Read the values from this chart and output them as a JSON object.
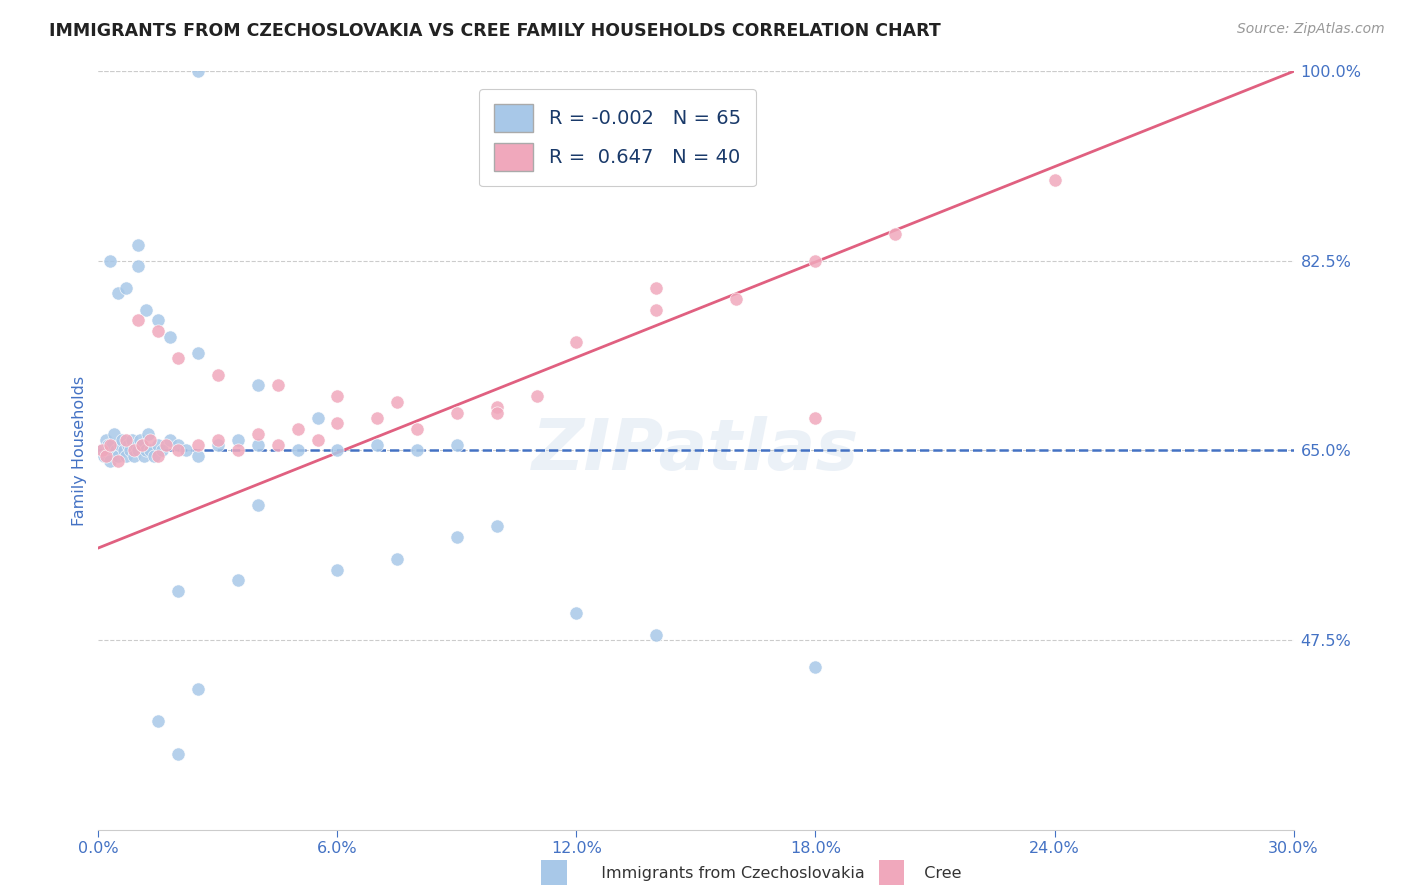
{
  "title": "IMMIGRANTS FROM CZECHOSLOVAKIA VS CREE FAMILY HOUSEHOLDS CORRELATION CHART",
  "source": "Source: ZipAtlas.com",
  "ylabel": "Family Households",
  "xlim": [
    0.0,
    30.0
  ],
  "ylim": [
    30.0,
    100.0
  ],
  "yticks": [
    47.5,
    65.0,
    82.5,
    100.0
  ],
  "xticks": [
    0.0,
    6.0,
    12.0,
    18.0,
    24.0,
    30.0
  ],
  "blue_R": -0.002,
  "blue_N": 65,
  "pink_R": 0.647,
  "pink_N": 40,
  "blue_color": "#a8c8e8",
  "pink_color": "#f0a8bc",
  "blue_line_color": "#4472c4",
  "pink_line_color": "#e06080",
  "title_color": "#222222",
  "axis_label_color": "#4472c4",
  "background_color": "#ffffff",
  "blue_line_y0": 65.0,
  "blue_line_y1": 65.0,
  "pink_line_y0": 56.0,
  "pink_line_y1": 100.0,
  "blue_scatter_x": [
    0.1,
    0.15,
    0.2,
    0.25,
    0.3,
    0.35,
    0.4,
    0.45,
    0.5,
    0.55,
    0.6,
    0.65,
    0.7,
    0.75,
    0.8,
    0.85,
    0.9,
    0.95,
    1.0,
    1.05,
    1.1,
    1.15,
    1.2,
    1.25,
    1.3,
    1.4,
    1.5,
    1.6,
    1.8,
    2.0,
    2.2,
    2.5,
    3.0,
    3.5,
    4.0,
    5.0,
    6.0,
    7.0,
    8.0,
    9.0,
    1.0,
    0.3,
    0.5,
    0.7,
    1.2,
    1.5,
    1.8,
    2.5,
    4.0,
    5.5,
    7.5,
    9.0,
    10.0,
    12.0,
    14.0,
    18.0,
    2.0,
    3.5,
    6.0,
    2.0,
    1.5,
    2.5,
    1.0,
    4.0,
    2.5
  ],
  "blue_scatter_y": [
    65.0,
    64.5,
    66.0,
    65.5,
    64.0,
    65.5,
    66.5,
    65.0,
    64.5,
    65.5,
    66.0,
    65.0,
    64.5,
    65.5,
    65.0,
    66.0,
    64.5,
    65.5,
    65.0,
    66.0,
    65.5,
    64.5,
    65.0,
    66.5,
    65.0,
    64.5,
    65.5,
    65.0,
    66.0,
    65.5,
    65.0,
    64.5,
    65.5,
    66.0,
    65.5,
    65.0,
    65.0,
    65.5,
    65.0,
    65.5,
    82.0,
    82.5,
    79.5,
    80.0,
    78.0,
    77.0,
    75.5,
    74.0,
    71.0,
    68.0,
    55.0,
    57.0,
    58.0,
    50.0,
    48.0,
    45.0,
    52.0,
    53.0,
    54.0,
    37.0,
    40.0,
    43.0,
    84.0,
    60.0,
    100.0
  ],
  "pink_scatter_x": [
    0.1,
    0.2,
    0.3,
    0.5,
    0.7,
    0.9,
    1.1,
    1.3,
    1.5,
    1.7,
    2.0,
    2.5,
    3.0,
    3.5,
    4.0,
    4.5,
    5.0,
    5.5,
    6.0,
    7.0,
    8.0,
    9.0,
    10.0,
    11.0,
    12.0,
    14.0,
    16.0,
    18.0,
    20.0,
    24.0,
    1.0,
    1.5,
    2.0,
    3.0,
    4.5,
    6.0,
    7.5,
    10.0,
    14.0,
    18.0
  ],
  "pink_scatter_y": [
    65.0,
    64.5,
    65.5,
    64.0,
    66.0,
    65.0,
    65.5,
    66.0,
    64.5,
    65.5,
    65.0,
    65.5,
    66.0,
    65.0,
    66.5,
    65.5,
    67.0,
    66.0,
    67.5,
    68.0,
    67.0,
    68.5,
    69.0,
    70.0,
    75.0,
    78.0,
    79.0,
    82.5,
    85.0,
    90.0,
    77.0,
    76.0,
    73.5,
    72.0,
    71.0,
    70.0,
    69.5,
    68.5,
    80.0,
    68.0
  ]
}
